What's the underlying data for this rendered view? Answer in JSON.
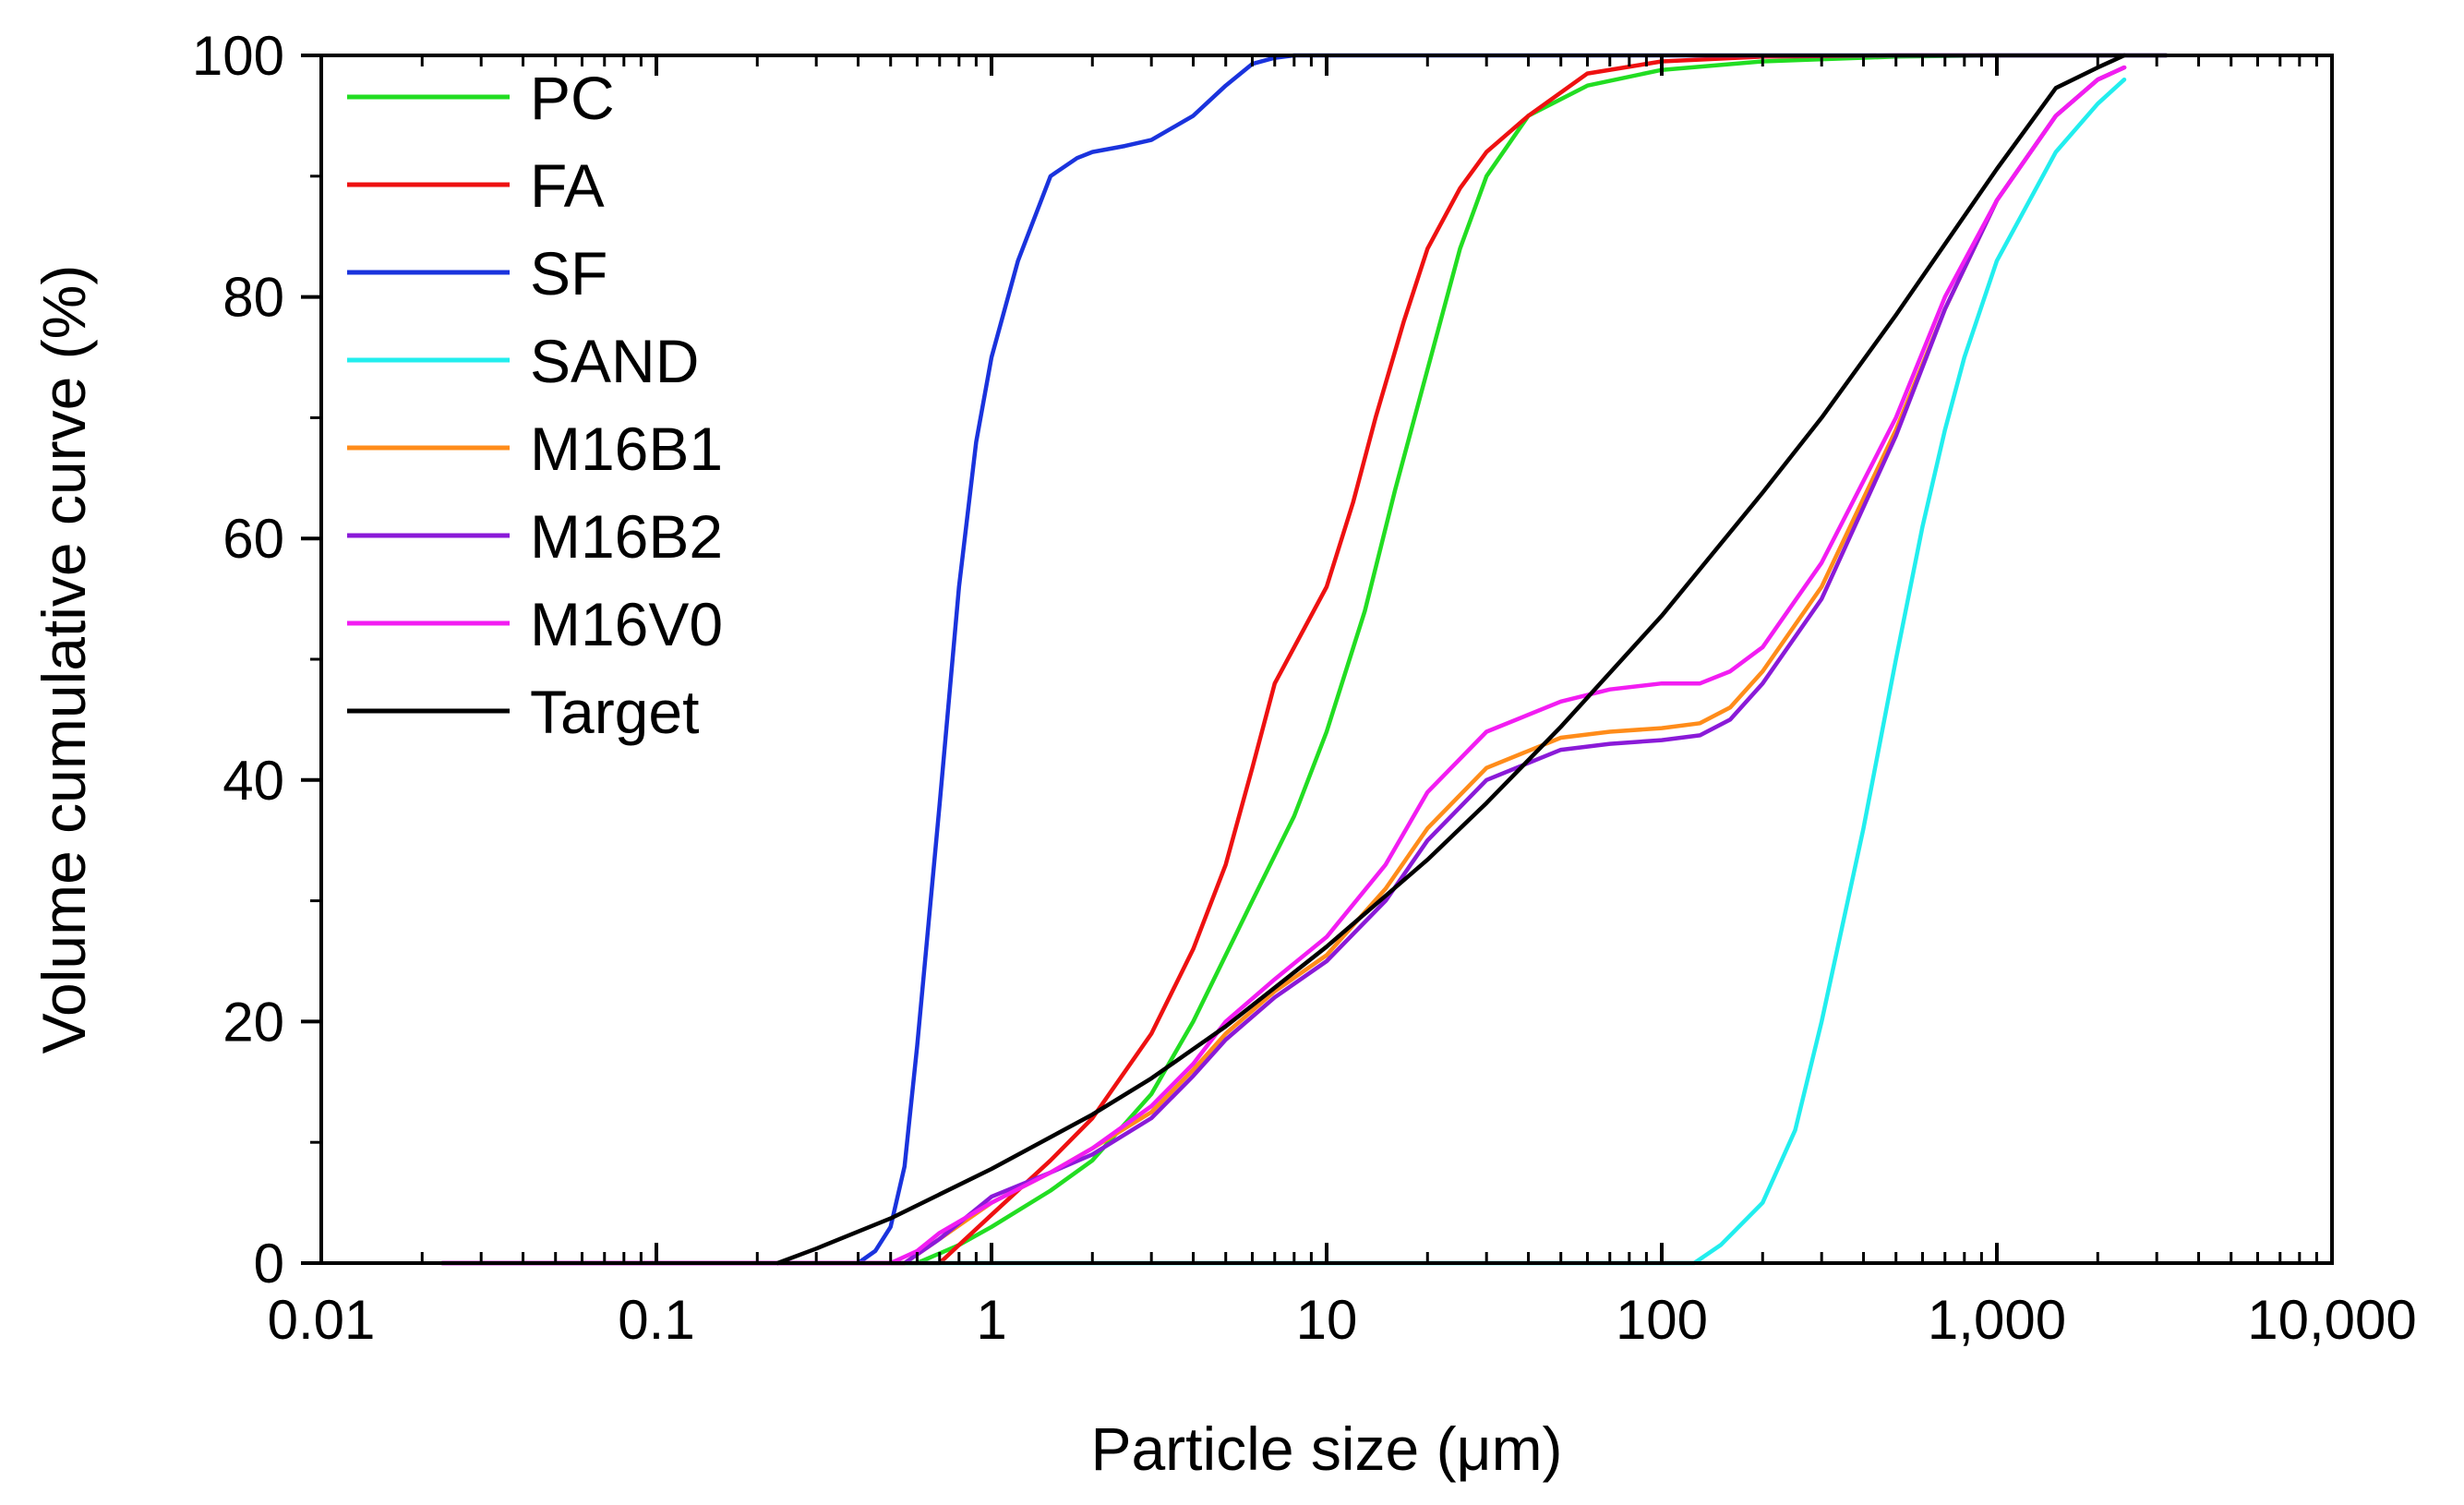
{
  "chart_data": {
    "type": "line",
    "x_scale": "log",
    "xlabel": "Particle size (μm)",
    "ylabel": "Volume cumulative curve (%)",
    "xlim": [
      0.01,
      10000
    ],
    "ylim": [
      0,
      100
    ],
    "x_ticks": [
      {
        "value": 0.01,
        "label": "0.01"
      },
      {
        "value": 0.1,
        "label": "0.1"
      },
      {
        "value": 1,
        "label": "1"
      },
      {
        "value": 10,
        "label": "10"
      },
      {
        "value": 100,
        "label": "100"
      },
      {
        "value": 1000,
        "label": "1,000"
      },
      {
        "value": 10000,
        "label": "10,000"
      }
    ],
    "y_ticks": [
      {
        "value": 0,
        "label": "0"
      },
      {
        "value": 20,
        "label": "20"
      },
      {
        "value": 40,
        "label": "40"
      },
      {
        "value": 60,
        "label": "60"
      },
      {
        "value": 80,
        "label": "80"
      },
      {
        "value": 100,
        "label": "100"
      }
    ],
    "legend_position": "top-left",
    "grid": false,
    "series": [
      {
        "name": "PC",
        "color": "#22dd22",
        "x": [
          0.023,
          0.6,
          0.8,
          1,
          1.5,
          2,
          3,
          4,
          6,
          8,
          10,
          13,
          16,
          20,
          25,
          30,
          40,
          60,
          100,
          200,
          500,
          1000,
          2000,
          3200
        ],
        "y": [
          0,
          0,
          1.5,
          3,
          6,
          8.5,
          14,
          20,
          30,
          37,
          44,
          54,
          64,
          74,
          84,
          90,
          95,
          97.5,
          98.8,
          99.5,
          99.9,
          100,
          100,
          100
        ]
      },
      {
        "name": "FA",
        "color": "#ee1111",
        "x": [
          0.023,
          0.7,
          0.8,
          1,
          1.5,
          2,
          3,
          4,
          5,
          6,
          7,
          10,
          12,
          14,
          17,
          20,
          25,
          30,
          40,
          60,
          100,
          200,
          500,
          1000,
          3200
        ],
        "y": [
          0,
          0,
          1.5,
          4,
          8.5,
          12,
          19,
          26,
          33,
          41,
          48,
          56,
          63,
          70,
          78,
          84,
          89,
          92,
          95,
          98.5,
          99.5,
          99.9,
          100,
          100,
          100
        ]
      },
      {
        "name": "SF",
        "color": "#1a33dd",
        "x": [
          0.023,
          0.4,
          0.45,
          0.5,
          0.55,
          0.6,
          0.7,
          0.8,
          0.9,
          1,
          1.2,
          1.5,
          1.8,
          2,
          2.5,
          3,
          4,
          5,
          6,
          7,
          8,
          10,
          3200
        ],
        "y": [
          0,
          0,
          1,
          3,
          8,
          18,
          38,
          56,
          68,
          75,
          83,
          90,
          91.5,
          92,
          92.5,
          93,
          95,
          97.5,
          99.3,
          99.8,
          100,
          100,
          100
        ]
      },
      {
        "name": "SAND",
        "color": "#22eeee",
        "x": [
          0.023,
          125,
          150,
          200,
          250,
          300,
          400,
          500,
          600,
          700,
          800,
          1000,
          1500,
          2000,
          2400
        ],
        "y": [
          0,
          0,
          1.5,
          5,
          11,
          20,
          36,
          50,
          61,
          69,
          75,
          83,
          92,
          96,
          98
        ]
      },
      {
        "name": "M16B1",
        "color": "#ff8c1a",
        "x": [
          0.023,
          0.55,
          0.7,
          1,
          1.5,
          2,
          3,
          4,
          5,
          7,
          10,
          15,
          20,
          30,
          50,
          70,
          100,
          130,
          160,
          200,
          300,
          500,
          700,
          1000,
          1500,
          2000,
          2400
        ],
        "y": [
          0,
          0,
          2,
          5,
          7.5,
          9.5,
          12.5,
          16,
          19,
          22.5,
          25.5,
          31,
          36,
          41,
          43.5,
          44,
          44.3,
          44.7,
          46,
          49,
          56,
          69,
          79,
          88,
          95,
          98,
          99
        ]
      },
      {
        "name": "M16B2",
        "color": "#8a1ad8",
        "x": [
          0.023,
          0.55,
          0.7,
          1,
          1.5,
          2,
          3,
          4,
          5,
          7,
          10,
          15,
          20,
          30,
          50,
          70,
          100,
          130,
          160,
          200,
          300,
          500,
          700,
          1000,
          1500,
          2000,
          2400
        ],
        "y": [
          0,
          0,
          2,
          5.5,
          7.5,
          9,
          12,
          15.5,
          18.5,
          22,
          25,
          30,
          35,
          40,
          42.5,
          43,
          43.3,
          43.7,
          45,
          48,
          55,
          68.5,
          79,
          88,
          95,
          98,
          99
        ]
      },
      {
        "name": "M16V0",
        "color": "#f21df2",
        "x": [
          0.023,
          0.5,
          0.6,
          0.7,
          1,
          1.5,
          2,
          3,
          4,
          5,
          7,
          10,
          15,
          20,
          30,
          50,
          70,
          100,
          130,
          160,
          200,
          300,
          500,
          700,
          1000,
          1500,
          2000,
          2400
        ],
        "y": [
          0,
          0,
          1,
          2.5,
          5,
          7.5,
          9.5,
          13,
          16.5,
          20,
          23.5,
          27,
          33,
          39,
          44,
          46.5,
          47.5,
          48,
          48,
          49,
          51,
          58,
          70,
          80,
          88,
          95,
          98,
          99
        ]
      },
      {
        "name": "Target",
        "color": "#000000",
        "x": [
          0.23,
          0.3,
          0.5,
          1,
          2,
          3,
          5,
          10,
          20,
          30,
          50,
          100,
          200,
          300,
          500,
          1000,
          1500,
          2000,
          2400
        ],
        "y": [
          0,
          1.2,
          3.7,
          7.8,
          12.3,
          15.3,
          19.6,
          26.2,
          33.4,
          38.1,
          44.4,
          53.6,
          63.8,
          70,
          78.5,
          90.6,
          97.3,
          99,
          100
        ]
      }
    ]
  }
}
